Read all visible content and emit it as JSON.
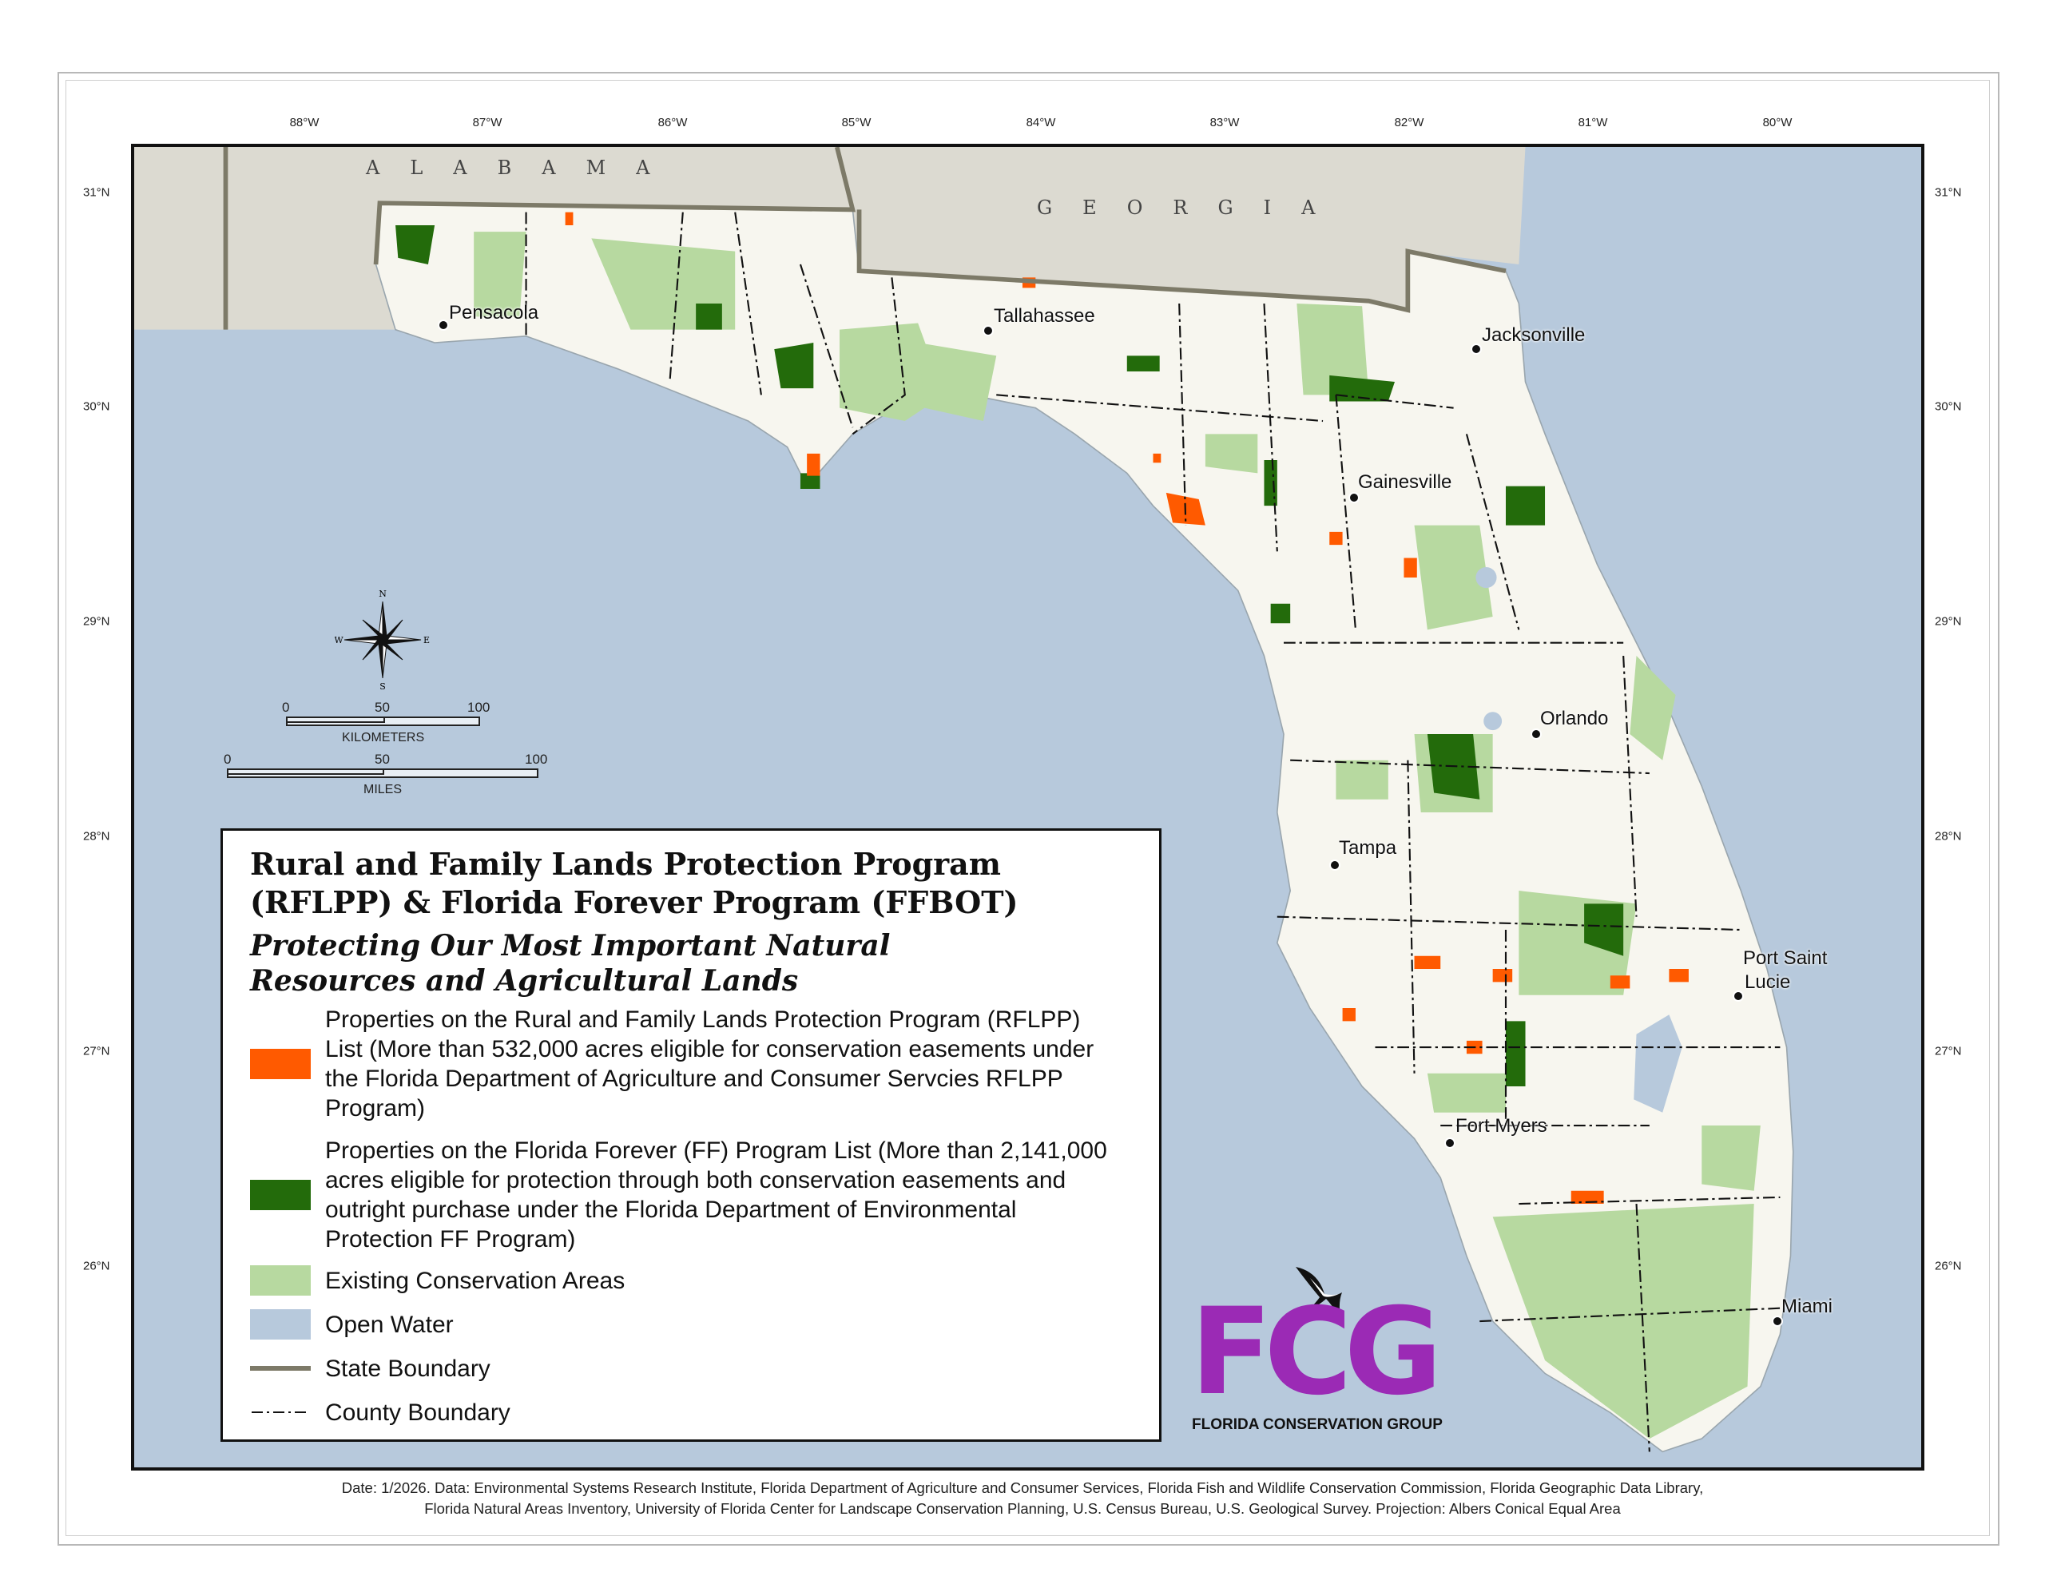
{
  "graticule": {
    "longitudes": [
      "88°W",
      "87°W",
      "86°W",
      "85°W",
      "84°W",
      "83°W",
      "82°W",
      "81°W",
      "80°W"
    ],
    "latitudes": [
      "31°N",
      "30°N",
      "29°N",
      "28°N",
      "27°N",
      "26°N"
    ]
  },
  "states": {
    "alabama": "ALABAMA",
    "georgia": "GEORGIA"
  },
  "cities": {
    "pensacola": "Pensacola",
    "tallahassee": "Tallahassee",
    "jacksonville": "Jacksonville",
    "gainesville": "Gainesville",
    "orlando": "Orlando",
    "tampa": "Tampa",
    "port_saint_lucie_1": "Port Saint",
    "port_saint_lucie_2": "Lucie",
    "fort_myers": "Fort Myers",
    "miami": "Miami"
  },
  "compass": {
    "n": "N",
    "s": "S",
    "e": "E",
    "w": "W"
  },
  "scale": {
    "km": {
      "ticks": [
        "0",
        "50",
        "100"
      ],
      "unit": "KILOMETERS"
    },
    "miles": {
      "ticks": [
        "0",
        "50",
        "100"
      ],
      "unit": "MILES"
    }
  },
  "legend": {
    "title_1": "Rural and Family Lands Protection Program",
    "title_2": "(RFLPP) & Florida Forever Program (FFBOT)",
    "subtitle_1": "Protecting Our Most Important Natural",
    "subtitle_2": "Resources and Agricultural Lands",
    "items": [
      {
        "label": "Properties on the Rural and Family Lands Protection Program (RFLPP) List (More than 532,000 acres eligible for conservation easements under the Florida Department of Agriculture and Consumer Servcies RFLPP Program)",
        "color": "#ff5a00"
      },
      {
        "label": "Properties on the Florida Forever (FF) Program List (More than 2,141,000 acres eligible for protection through both conservation easements and outright purchase under the Florida Department of Environmental Protection FF Program)",
        "color": "#236b0b"
      },
      {
        "label": "Existing Conservation Areas",
        "color": "#b7d9a0"
      },
      {
        "label": "Open Water",
        "color": "#b7c9dc"
      },
      {
        "label": "State Boundary",
        "color": "#7d7a68"
      },
      {
        "label": "County Boundary",
        "color": "#111111"
      }
    ]
  },
  "logo": {
    "mark": "FCG",
    "name": "FLORIDA CONSERVATION GROUP",
    "color": "#9b2ab5"
  },
  "footer": {
    "line1": "Date: 1/2026.  Data: Environmental Systems Research Institute, Florida Department of Agriculture and Consumer Services, Florida Fish and Wildlife Conservation Commission, Florida Geographic Data Library,",
    "line2": "Florida Natural Areas Inventory, University of Florida Center for Landscape Conservation Planning, U.S. Census Bureau, U.S. Geological Survey.  Projection: Albers Conical Equal Area"
  }
}
